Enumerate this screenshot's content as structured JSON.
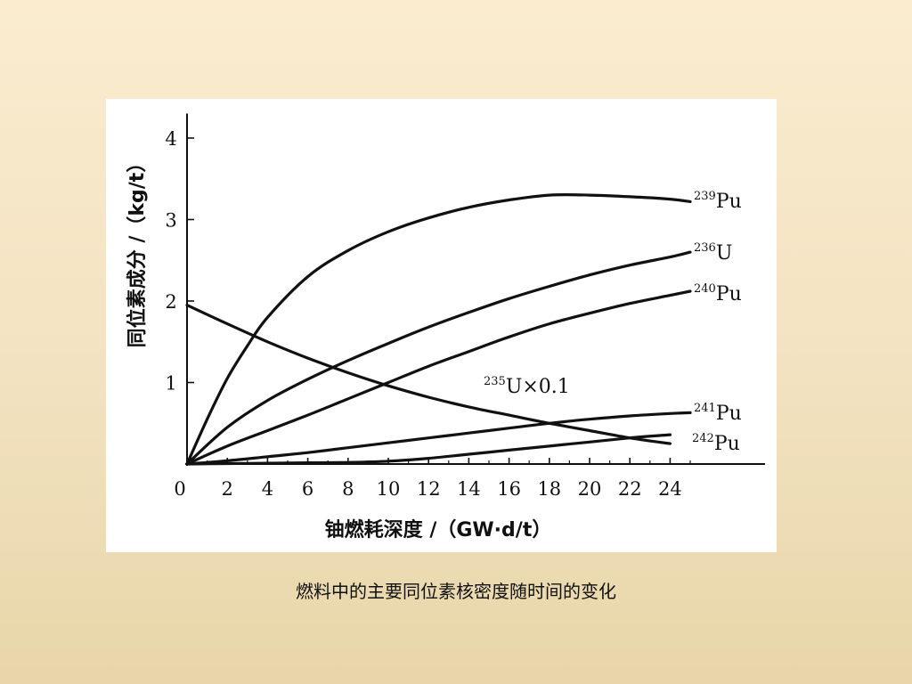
{
  "caption": "燃料中的主要同位素核密度随时间的变化",
  "chart_data": {
    "type": "line",
    "xlabel": "铀燃耗深度 /（GW·d/t）",
    "ylabel": "同位素成分 /（kg/t）",
    "x_ticks": [
      "0",
      "2",
      "4",
      "6",
      "8",
      "10",
      "12",
      "14",
      "16",
      "18",
      "20",
      "22",
      "24"
    ],
    "y_ticks": [
      "1",
      "2",
      "3",
      "4"
    ],
    "xlim": [
      0,
      26
    ],
    "ylim": [
      0,
      4.3
    ],
    "series": [
      {
        "name": "Pu",
        "isotope": "239",
        "x": [
          0,
          1,
          2,
          3,
          4,
          6,
          8,
          10,
          12,
          14,
          16,
          18,
          20,
          22,
          24,
          25
        ],
        "y": [
          0,
          0.55,
          1.05,
          1.45,
          1.8,
          2.3,
          2.62,
          2.85,
          3.02,
          3.15,
          3.24,
          3.3,
          3.3,
          3.28,
          3.25,
          3.22
        ]
      },
      {
        "name": "U",
        "isotope": "236",
        "x": [
          0,
          2,
          4,
          6,
          8,
          10,
          12,
          14,
          16,
          18,
          20,
          22,
          24,
          25
        ],
        "y": [
          0,
          0.45,
          0.78,
          1.04,
          1.27,
          1.48,
          1.68,
          1.86,
          2.03,
          2.18,
          2.32,
          2.44,
          2.54,
          2.6
        ]
      },
      {
        "name": "Pu",
        "isotope": "240",
        "x": [
          0,
          2,
          4,
          6,
          8,
          10,
          12,
          14,
          16,
          18,
          20,
          22,
          24,
          25
        ],
        "y": [
          0,
          0.22,
          0.41,
          0.6,
          0.8,
          1.0,
          1.2,
          1.38,
          1.56,
          1.72,
          1.85,
          1.97,
          2.07,
          2.12
        ]
      },
      {
        "name": "U×0.1",
        "isotope": "235",
        "x": [
          0,
          2,
          4,
          6,
          8,
          10,
          12,
          14,
          16,
          18,
          20,
          22,
          24
        ],
        "y": [
          1.95,
          1.72,
          1.5,
          1.3,
          1.12,
          0.96,
          0.82,
          0.7,
          0.6,
          0.5,
          0.41,
          0.32,
          0.25
        ]
      },
      {
        "name": "Pu",
        "isotope": "241",
        "x": [
          0,
          2,
          4,
          6,
          8,
          10,
          12,
          14,
          16,
          18,
          20,
          22,
          24,
          25
        ],
        "y": [
          0,
          0.04,
          0.09,
          0.14,
          0.2,
          0.26,
          0.32,
          0.38,
          0.44,
          0.5,
          0.55,
          0.59,
          0.62,
          0.63
        ]
      },
      {
        "name": "Pu",
        "isotope": "242",
        "x": [
          0,
          2,
          4,
          6,
          8,
          10,
          12,
          14,
          16,
          18,
          20,
          22,
          24
        ],
        "y": [
          0,
          0.005,
          0.01,
          0.015,
          0.02,
          0.035,
          0.07,
          0.12,
          0.17,
          0.22,
          0.27,
          0.32,
          0.36
        ]
      }
    ]
  }
}
